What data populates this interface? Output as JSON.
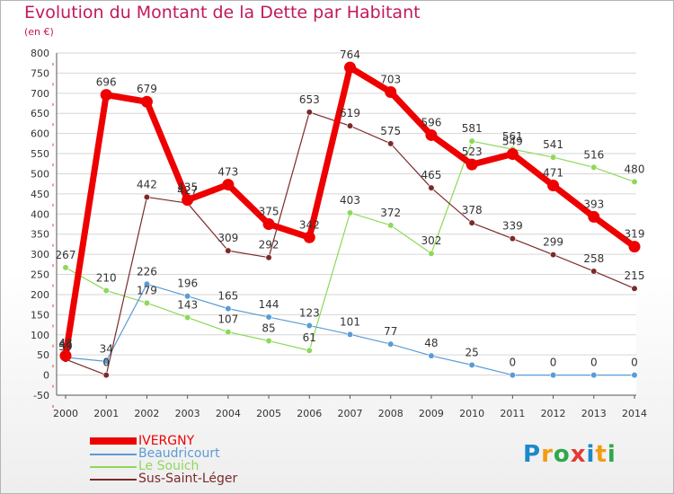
{
  "header": {
    "title": "Evolution du Montant de la Dette par Habitant",
    "subtitle": "(en €)"
  },
  "logo": {
    "text": "Proxiti",
    "letters": [
      {
        "ch": "P",
        "color": "#1e88c8"
      },
      {
        "ch": "r",
        "color": "#f39c12"
      },
      {
        "ch": "o",
        "color": "#2ea84a"
      },
      {
        "ch": "x",
        "color": "#e53935"
      },
      {
        "ch": "i",
        "color": "#1e88c8"
      },
      {
        "ch": "t",
        "color": "#f39c12"
      },
      {
        "ch": "i",
        "color": "#2ea84a"
      }
    ]
  },
  "chart_data": {
    "type": "line",
    "title": "Evolution du Montant de la Dette par Habitant",
    "ylabel": "(en €)",
    "xlabel": "",
    "ylim": [
      -50,
      800
    ],
    "yticks": [
      -50,
      0,
      50,
      100,
      150,
      200,
      250,
      300,
      350,
      400,
      450,
      500,
      550,
      600,
      650,
      700,
      750,
      800
    ],
    "x": [
      "2000",
      "2001",
      "2002",
      "2003",
      "2004",
      "2005",
      "2006",
      "2007",
      "2008",
      "2009",
      "2010",
      "2011",
      "2012",
      "2013",
      "2014"
    ],
    "grid": "horizontal",
    "legend_position": "bottom-left",
    "series": [
      {
        "name": "IVERGNY",
        "color": "#ee0000",
        "width": 7,
        "values": [
          48,
          696,
          679,
          435,
          473,
          375,
          342,
          764,
          703,
          596,
          523,
          549,
          471,
          393,
          319
        ]
      },
      {
        "name": "Beaudricourt",
        "color": "#5b9bd5",
        "width": 1.2,
        "values": [
          44,
          34,
          226,
          196,
          165,
          144,
          123,
          101,
          77,
          48,
          25,
          0,
          0,
          0,
          0
        ]
      },
      {
        "name": "Le Souich",
        "color": "#8ed85a",
        "width": 1.2,
        "values": [
          267,
          210,
          179,
          143,
          107,
          85,
          61,
          403,
          372,
          302,
          581,
          561,
          541,
          516,
          480
        ]
      },
      {
        "name": "Sus-Saint-Léger",
        "color": "#7b2a2a",
        "width": 1.2,
        "values": [
          39,
          0,
          442,
          427,
          309,
          292,
          653,
          619,
          575,
          465,
          378,
          339,
          299,
          258,
          215
        ]
      }
    ],
    "data_labels": [
      {
        "series": 0,
        "labels": [
          "48",
          "696",
          "679",
          "435",
          "473",
          "375",
          "342",
          "764",
          "703",
          "596",
          "523",
          "549",
          "471",
          "393",
          "319"
        ]
      },
      {
        "series": 1,
        "labels": [
          "44",
          "34",
          "226",
          "196",
          "165",
          "144",
          "123",
          "101",
          "77",
          "48",
          "25",
          "0",
          "0",
          "0",
          "0"
        ]
      },
      {
        "series": 2,
        "labels": [
          "267",
          "210",
          "179",
          "143",
          "107",
          "85",
          "61",
          "403",
          "372",
          "302",
          "581",
          "561",
          "541",
          "516",
          "480"
        ]
      },
      {
        "series": 3,
        "labels": [
          "39",
          "0",
          "442",
          "427",
          "309",
          "292",
          "653",
          "619",
          "575",
          "465",
          "378",
          "339",
          "299",
          "258",
          "215"
        ]
      }
    ]
  }
}
